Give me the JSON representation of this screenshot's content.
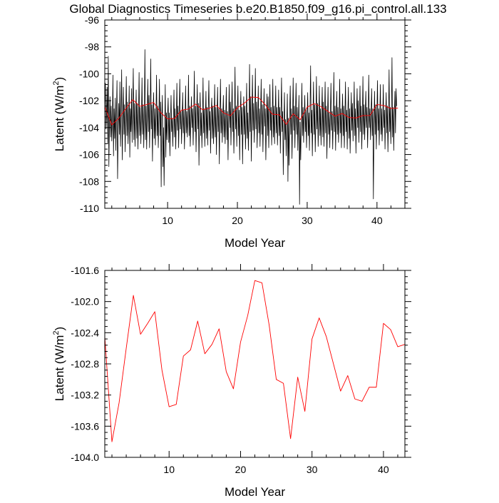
{
  "figure": {
    "title": "Global Diagnostics Timeseries b.e20.B1850.f09_g16.pi_control.all.133"
  },
  "chart_data": [
    {
      "type": "line",
      "xlabel": "Model Year",
      "ylabel": "Latent (W/m²)",
      "ylabel_main": "Latent (W/m",
      "ylabel_sup": "2",
      "ylabel_tail": ")",
      "xlim": [
        1,
        44
      ],
      "ylim": [
        -110,
        -96
      ],
      "xticks": [
        10,
        20,
        30,
        40
      ],
      "xtick_labels": [
        "10",
        "20",
        "30",
        "40"
      ],
      "yticks": [
        -110,
        -108,
        -106,
        -104,
        -102,
        -100,
        -98,
        -96
      ],
      "ytick_labels": [
        "-110",
        "-108",
        "-106",
        "-104",
        "-102",
        "-100",
        "-98",
        "-96"
      ],
      "series": [
        {
          "name": "",
          "color": "#000000",
          "x_start": 1,
          "x_step": 0.0833,
          "values": [
            -102.5,
            -100.7,
            -104.1,
            -103.0,
            -101.0,
            -105.2,
            -98.7,
            -106.9,
            -103.6,
            -101.7,
            -104.7,
            -102.4,
            -105.0,
            -103.7,
            -100.1,
            -106.1,
            -102.6,
            -104.8,
            -101.8,
            -105.7,
            -103.0,
            -100.5,
            -107.8,
            -104.3,
            -102.2,
            -104.5,
            -100.6,
            -105.4,
            -103.1,
            -99.7,
            -106.4,
            -103.3,
            -101.0,
            -104.5,
            -102.3,
            -105.8,
            -103.2,
            -100.2,
            -104.6,
            -102.1,
            -105.2,
            -103.4,
            -100.9,
            -106.2,
            -102.6,
            -104.3,
            -101.1,
            -105.1,
            -102.5,
            -99.6,
            -104.9,
            -102.2,
            -105.4,
            -103.2,
            -101.2,
            -104.8,
            -102.2,
            -105.6,
            -103.3,
            -99.9,
            -104.6,
            -102.5,
            -105.2,
            -103.4,
            -100.3,
            -104.5,
            -102.3,
            -105.5,
            -103.1,
            -98.2,
            -104.9,
            -102.4,
            -105.6,
            -103.1,
            -100.4,
            -104.3,
            -101.6,
            -105.5,
            -103.1,
            -98.9,
            -104.1,
            -102.3,
            -106.5,
            -102.8,
            -101.4,
            -104.8,
            -102.6,
            -105.3,
            -103.2,
            -100.1,
            -104.6,
            -102.4,
            -105.5,
            -103.3,
            -100.4,
            -104.6,
            -102.1,
            -108.4,
            -103.3,
            -101.6,
            -106.9,
            -104.0,
            -108.3,
            -104.6,
            -100.8,
            -106.2,
            -102.9,
            -104.9,
            -103.1,
            -101.8,
            -105.1,
            -102.9,
            -106.1,
            -103.6,
            -101.6,
            -104.3,
            -103.3,
            -105.4,
            -103.4,
            -101.2,
            -104.7,
            -102.6,
            -105.6,
            -103.5,
            -100.7,
            -104.2,
            -102.4,
            -105.5,
            -103.0,
            -100.4,
            -104.1,
            -102.8,
            -105.2,
            -103.3,
            -101.4,
            -104.4,
            -102.7,
            -105.6,
            -103.5,
            -100.9,
            -104.4,
            -102.8,
            -104.7,
            -103.3,
            -100.1,
            -104.6,
            -102.4,
            -105.4,
            -103.6,
            -101.7,
            -104.0,
            -102.6,
            -105.3,
            -103.0,
            -99.8,
            -104.3,
            -102.4,
            -105.8,
            -103.1,
            -100.8,
            -104.1,
            -102.2,
            -106.8,
            -103.4,
            -101.4,
            -104.6,
            -102.9,
            -105.5,
            -103.6,
            -100.3,
            -104.4,
            -102.6,
            -105.4,
            -103.3,
            -101.3,
            -104.8,
            -102.5,
            -105.3,
            -102.8,
            -100.5,
            -104.2,
            -102.8,
            -105.9,
            -102.8,
            -101.8,
            -104.8,
            -102.4,
            -105.2,
            -103.5,
            -100.8,
            -104.7,
            -102.5,
            -106.0,
            -103.2,
            -101.0,
            -104.3,
            -102.6,
            -106.7,
            -103.2,
            -100.4,
            -104.4,
            -102.6,
            -105.1,
            -103.1,
            -101.6,
            -104.7,
            -102.7,
            -105.2,
            -103.4,
            -101.0,
            -104.9,
            -102.8,
            -106.4,
            -103.4,
            -100.8,
            -104.0,
            -102.1,
            -105.3,
            -103.0,
            -100.6,
            -104.3,
            -102.6,
            -105.9,
            -103.5,
            -99.5,
            -104.1,
            -102.4,
            -105.4,
            -102.8,
            -100.9,
            -104.6,
            -102.7,
            -106.4,
            -103.0,
            -101.3,
            -104.5,
            -102.5,
            -106.7,
            -103.3,
            -101.7,
            -104.5,
            -102.4,
            -105.6,
            -103.6,
            -100.7,
            -104.8,
            -102.9,
            -105.7,
            -103.5,
            -99.3,
            -104.3,
            -101.7,
            -106.5,
            -103.0,
            -100.1,
            -104.2,
            -102.2,
            -105.1,
            -103.2,
            -99.6,
            -104.1,
            -102.1,
            -105.5,
            -103.4,
            -100.9,
            -104.4,
            -102.6,
            -105.4,
            -103.0,
            -100.4,
            -104.5,
            -102.3,
            -105.8,
            -103.2,
            -101.1,
            -103.9,
            -102.6,
            -106.4,
            -103.7,
            -101.5,
            -104.6,
            -101.7,
            -105.5,
            -103.2,
            -100.8,
            -104.2,
            -102.5,
            -105.3,
            -103.4,
            -100.4,
            -104.7,
            -102.4,
            -105.2,
            -103.3,
            -100.9,
            -104.4,
            -102.5,
            -105.3,
            -103.6,
            -101.2,
            -104.6,
            -102.5,
            -105.9,
            -103.1,
            -100.3,
            -104.3,
            -102.8,
            -107.5,
            -104.0,
            -101.4,
            -104.9,
            -103.4,
            -106.1,
            -103.7,
            -101.5,
            -108.0,
            -103.3,
            -106.8,
            -102.9,
            -100.9,
            -104.5,
            -102.6,
            -106.3,
            -103.5,
            -100.3,
            -104.2,
            -102.4,
            -105.5,
            -103.0,
            -100.7,
            -104.5,
            -102.5,
            -105.7,
            -103.4,
            -101.6,
            -109.7,
            -103.6,
            -106.4,
            -103.3,
            -100.7,
            -104.6,
            -102.5,
            -105.1,
            -103.2,
            -101.6,
            -104.3,
            -102.7,
            -105.5,
            -103.3,
            -101.4,
            -104.6,
            -102.9,
            -105.7,
            -102.8,
            -99.4,
            -104.4,
            -102.7,
            -106.1,
            -103.1,
            -100.6,
            -104.5,
            -102.3,
            -105.8,
            -103.6,
            -100.2,
            -104.1,
            -102.2,
            -105.4,
            -103.4,
            -100.9,
            -104.6,
            -102.6,
            -105.3,
            -102.9,
            -101.0,
            -104.7,
            -102.1,
            -105.4,
            -103.2,
            -100.6,
            -104.4,
            -102.4,
            -106.3,
            -103.5,
            -101.0,
            -104.5,
            -102.9,
            -105.5,
            -103.0,
            -100.7,
            -104.2,
            -102.8,
            -105.6,
            -103.3,
            -99.9,
            -104.3,
            -102.4,
            -105.7,
            -103.1,
            -101.3,
            -104.5,
            -102.5,
            -105.1,
            -103.5,
            -100.4,
            -104.4,
            -102.6,
            -105.5,
            -103.2,
            -101.5,
            -104.6,
            -102.4,
            -105.5,
            -103.3,
            -100.6,
            -104.3,
            -102.7,
            -105.6,
            -103.0,
            -101.0,
            -104.8,
            -102.6,
            -105.9,
            -103.6,
            -101.4,
            -104.2,
            -102.2,
            -105.0,
            -103.4,
            -100.6,
            -104.6,
            -102.6,
            -105.9,
            -103.1,
            -101.1,
            -104.0,
            -102.0,
            -105.1,
            -103.2,
            -100.9,
            -104.3,
            -102.4,
            -105.6,
            -103.5,
            -100.2,
            -104.5,
            -102.3,
            -104.9,
            -102.9,
            -101.3,
            -104.0,
            -102.5,
            -105.5,
            -103.4,
            -100.1,
            -104.0,
            -102.6,
            -104.9,
            -102.9,
            -101.1,
            -104.6,
            -102.6,
            -109.3,
            -103.7,
            -101.3,
            -104.5,
            -102.3,
            -105.6,
            -103.2,
            -100.5,
            -104.2,
            -102.6,
            -105.3,
            -103.0,
            -100.8,
            -104.5,
            -102.6,
            -105.0,
            -103.5,
            -100.8,
            -104.0,
            -102.7,
            -105.6,
            -103.2,
            -101.4,
            -104.4,
            -102.4,
            -105.8,
            -103.5,
            -99.7,
            -104.3,
            -102.5,
            -105.2,
            -103.1,
            -98.8,
            -104.7,
            -102.5,
            -105.7,
            -103.1,
            -101.3,
            -104.4,
            -101.1,
            -102.4
          ]
        },
        {
          "name": "",
          "color": "#ff0000",
          "x": [
            1,
            2,
            3,
            4,
            5,
            6,
            7,
            8,
            9,
            10,
            11,
            12,
            13,
            14,
            15,
            16,
            17,
            18,
            19,
            20,
            21,
            22,
            23,
            24,
            25,
            26,
            27,
            28,
            29,
            30,
            31,
            32,
            33,
            34,
            35,
            36,
            37,
            38,
            39,
            40,
            41,
            42,
            43
          ],
          "values": [
            -102.45,
            -103.8,
            -103.3,
            -102.6,
            -101.92,
            -102.42,
            -102.28,
            -102.13,
            -102.88,
            -103.35,
            -103.32,
            -102.7,
            -102.62,
            -102.25,
            -102.67,
            -102.55,
            -102.35,
            -102.9,
            -103.12,
            -102.52,
            -102.18,
            -101.73,
            -101.76,
            -102.3,
            -103.0,
            -103.05,
            -103.76,
            -102.97,
            -103.41,
            -102.48,
            -102.21,
            -102.45,
            -102.8,
            -103.15,
            -102.95,
            -103.25,
            -103.28,
            -103.1,
            -103.1,
            -102.28,
            -102.36,
            -102.58,
            -102.55
          ]
        }
      ]
    },
    {
      "type": "line",
      "xlabel": "Model Year",
      "ylabel": "Latent (W/m²)",
      "ylabel_main": "Latent (W/m",
      "ylabel_sup": "2",
      "ylabel_tail": ")",
      "xlim": [
        1,
        43
      ],
      "ylim": [
        -104.0,
        -101.6
      ],
      "xticks": [
        10,
        20,
        30,
        40
      ],
      "xtick_labels": [
        "10",
        "20",
        "30",
        "40"
      ],
      "yticks": [
        -104.0,
        -103.6,
        -103.2,
        -102.8,
        -102.4,
        -102.0,
        -101.6
      ],
      "ytick_labels": [
        "-104.0",
        "-103.6",
        "-103.2",
        "-102.8",
        "-102.4",
        "-102.0",
        "-101.6"
      ],
      "series": [
        {
          "name": "",
          "color": "#ff0000",
          "x": [
            1,
            2,
            3,
            4,
            5,
            6,
            7,
            8,
            9,
            10,
            11,
            12,
            13,
            14,
            15,
            16,
            17,
            18,
            19,
            20,
            21,
            22,
            23,
            24,
            25,
            26,
            27,
            28,
            29,
            30,
            31,
            32,
            33,
            34,
            35,
            36,
            37,
            38,
            39,
            40,
            41,
            42,
            43
          ],
          "values": [
            -102.45,
            -103.8,
            -103.3,
            -102.6,
            -101.92,
            -102.42,
            -102.28,
            -102.13,
            -102.88,
            -103.35,
            -103.32,
            -102.7,
            -102.62,
            -102.25,
            -102.67,
            -102.55,
            -102.35,
            -102.9,
            -103.12,
            -102.52,
            -102.18,
            -101.73,
            -101.76,
            -102.3,
            -103.0,
            -103.05,
            -103.76,
            -102.97,
            -103.41,
            -102.48,
            -102.21,
            -102.45,
            -102.8,
            -103.15,
            -102.95,
            -103.25,
            -103.28,
            -103.1,
            -103.1,
            -102.28,
            -102.36,
            -102.58,
            -102.55
          ]
        }
      ]
    }
  ]
}
